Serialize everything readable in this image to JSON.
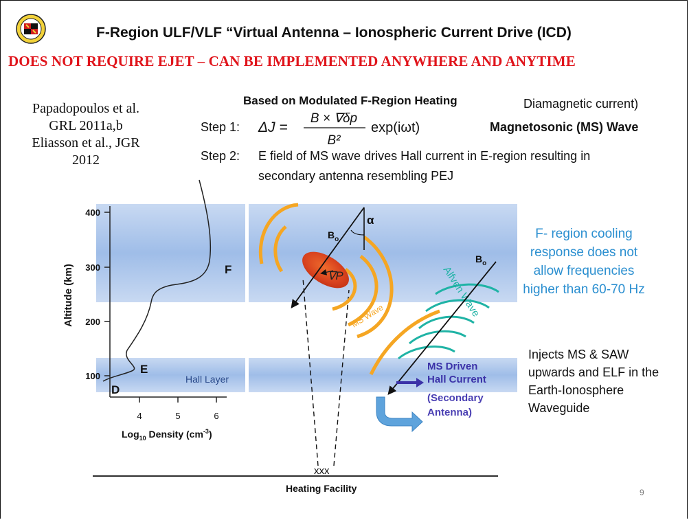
{
  "slide": {
    "title": "F-Region ULF/VLF “Virtual Antenna – Ionospheric Current Drive (ICD)",
    "subtitle": "DOES NOT REQUIRE EJET – CAN BE IMPLEMENTED ANYWHERE AND ANYTIME",
    "references": [
      "Papadopoulos et al.",
      "GRL 2011a,b",
      "Eliasson et al., JGR",
      "2012"
    ],
    "heading": "Based on Modulated F-Region Heating",
    "diamagnetic_note": "Diamagnetic current)",
    "step1_label": "Step 1:",
    "step1_equation": {
      "lhs": "ΔJ =",
      "numerator": "B × ∇δp",
      "denominator": "B²",
      "factor": "exp(iωt)"
    },
    "ms_wave_heading": "Magnetosonic (MS) Wave",
    "step2_label": "Step 2:",
    "step2_text": "E field of MS wave drives Hall current in E-region resulting in secondary antenna resembling PEJ",
    "cooling_note": "F- region cooling response does not allow frequencies higher than 60-70 Hz",
    "injects_note": "Injects MS & SAW upwards and ELF in the Earth-Ionosphere Waveguide",
    "page_number": "9",
    "logo_text": "UNIVERSITY OF MARYLAND"
  },
  "profile_plot": {
    "ylabel": "Altitude (km)",
    "xlabel_prefix": "Log",
    "xlabel_sub": "10",
    "xlabel_main": " Density (cm",
    "xlabel_sup": "-3",
    "xlabel_end": ")",
    "y_ticks": [
      "400",
      "300",
      "200",
      "100"
    ],
    "x_ticks": [
      "4",
      "5",
      "6"
    ],
    "layer_labels": {
      "F": "F",
      "E": "E",
      "D": "D"
    },
    "hall_layer": "Hall Layer"
  },
  "diagram": {
    "alpha": "α",
    "b0_left": "B",
    "b0_right": "B",
    "b0_sub": "o",
    "grad_p": "∇P",
    "ms_wave_label": "MS Wave",
    "alfven_label": "Alfven Wave",
    "hall_current_label": [
      "MS Driven",
      "Hall Current"
    ],
    "secondary_antenna_label": [
      "(Secondary",
      "Antenna)"
    ],
    "heater_label": "Heating Facility",
    "antenna_glyphs": "xxx"
  },
  "colors": {
    "title_red": "#e0141b",
    "band_blue": "#a9c4ea",
    "orange_wave": "#f5a623",
    "teal_wave": "#1fb3a5",
    "hall_text": "#3b32a8",
    "cooling_blue": "#2b8fd0",
    "heated_region": "#d8421e"
  }
}
